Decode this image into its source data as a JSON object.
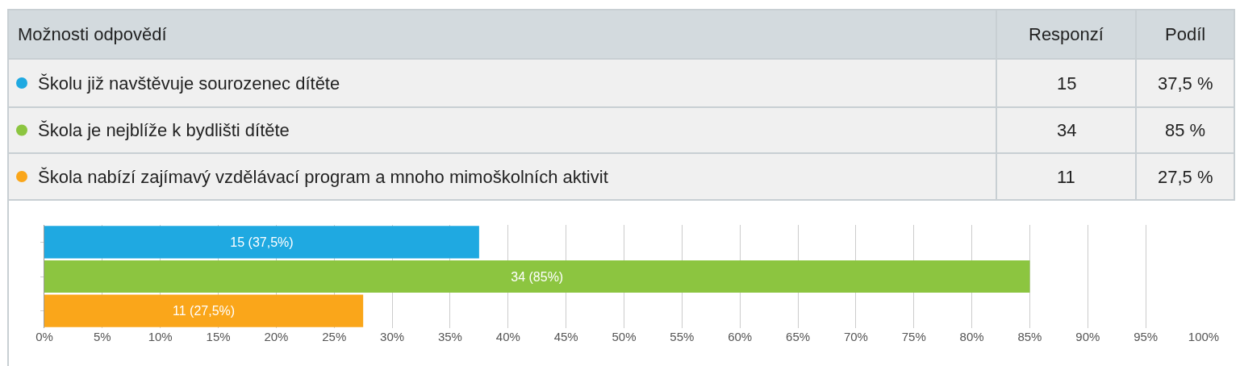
{
  "chart_data": {
    "type": "bar",
    "orientation": "horizontal",
    "categories": [
      null,
      null,
      null
    ],
    "values": [
      37.5,
      85,
      27.5
    ],
    "colors": [
      "#1fa9e1",
      "#8cc540",
      "#faa61a"
    ],
    "value_labels": [
      "15 (37,5%)",
      "34 (85%)",
      "11 (27,5%)"
    ],
    "xlim": [
      0,
      100
    ],
    "xticks": [
      {
        "value": 0,
        "label": "0%"
      },
      {
        "value": 5,
        "label": "5%"
      },
      {
        "value": 10,
        "label": "10%"
      },
      {
        "value": 15,
        "label": "15%"
      },
      {
        "value": 20,
        "label": "20%"
      },
      {
        "value": 25,
        "label": "25%"
      },
      {
        "value": 30,
        "label": "30%"
      },
      {
        "value": 35,
        "label": "35%"
      },
      {
        "value": 40,
        "label": "40%"
      },
      {
        "value": 45,
        "label": "45%"
      },
      {
        "value": 50,
        "label": "50%"
      },
      {
        "value": 55,
        "label": "55%"
      },
      {
        "value": 60,
        "label": "60%"
      },
      {
        "value": 65,
        "label": "65%"
      },
      {
        "value": 70,
        "label": "70%"
      },
      {
        "value": 75,
        "label": "75%"
      },
      {
        "value": 80,
        "label": "80%"
      },
      {
        "value": 85,
        "label": "85%"
      },
      {
        "value": 90,
        "label": "90%"
      },
      {
        "value": 95,
        "label": "95%"
      },
      {
        "value": 100,
        "label": "100%"
      }
    ],
    "grid": "x",
    "legend": false,
    "tick_labels": "x",
    "annotations": [
      "Možnosti odpovědí",
      "Responzí",
      "Podíl",
      "Školu již navštěvuje sourozenec dítěte",
      "15",
      "37,5 %",
      "Škola je nejblíže k bydlišti dítěte",
      "34",
      "85 %",
      "Škola nabízí zajímavý vzdělávací program a mnoho mimoškolních aktivit",
      "11",
      "27,5 %"
    ]
  }
}
